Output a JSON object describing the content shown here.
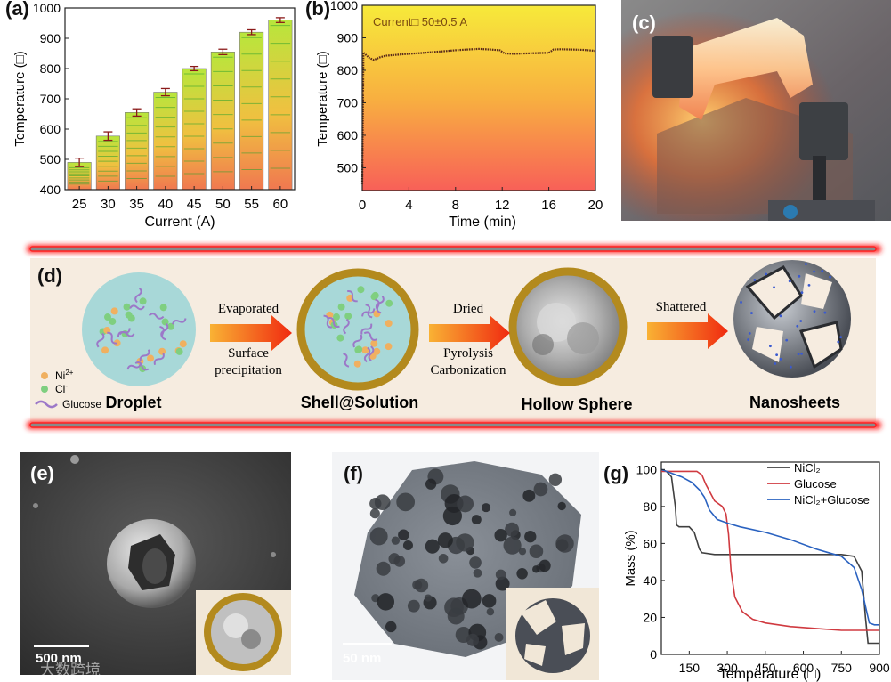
{
  "figure": {
    "panel_labels": {
      "a": "(a)",
      "b": "(b)",
      "c": "(c)",
      "d": "(d)",
      "e": "(e)",
      "f": "(f)",
      "g": "(g)"
    },
    "watermark": "大数跨境"
  },
  "chart_data": [
    {
      "id": "a",
      "type": "bar",
      "title": "",
      "xlabel": "Current (A)",
      "ylabel": "Temperature (□)",
      "categories": [
        "25",
        "30",
        "35",
        "40",
        "45",
        "50",
        "55",
        "60"
      ],
      "values": [
        490,
        577,
        655,
        722,
        800,
        855,
        920,
        960
      ],
      "errors": [
        14,
        14,
        12,
        12,
        7,
        9,
        8,
        8
      ],
      "ylim": [
        400,
        1000
      ],
      "yticks": [
        400,
        500,
        600,
        700,
        800,
        900,
        1000
      ]
    },
    {
      "id": "b",
      "type": "line",
      "title": "",
      "annotation": "Current□ 50±0.5 A",
      "xlabel": "Time (min)",
      "ylabel": "Temperature (□)",
      "x": [
        0,
        0.1,
        0.3,
        0.6,
        1,
        1.5,
        2,
        3,
        4,
        5,
        6,
        7,
        8,
        9,
        10,
        11,
        11.8,
        12.2,
        13,
        14,
        15,
        16,
        16.4,
        17,
        18,
        19,
        20
      ],
      "y": [
        450,
        855,
        848,
        838,
        832,
        840,
        845,
        848,
        851,
        853,
        856,
        859,
        862,
        864,
        866,
        864,
        862,
        852,
        851,
        852,
        853,
        854,
        864,
        865,
        864,
        863,
        860
      ],
      "xlim": [
        0,
        20
      ],
      "ylim": [
        430,
        1000
      ],
      "xticks": [
        0,
        4,
        8,
        12,
        16,
        20
      ],
      "yticks": [
        500,
        600,
        700,
        800,
        900,
        1000
      ]
    },
    {
      "id": "g",
      "type": "line",
      "title": "",
      "xlabel": "Temperature (□)",
      "ylabel": "Mass (%)",
      "xlim": [
        40,
        900
      ],
      "ylim": [
        0,
        104
      ],
      "xticks": [
        150,
        300,
        450,
        600,
        750,
        900
      ],
      "yticks": [
        0,
        20,
        40,
        60,
        80,
        100
      ],
      "series": [
        {
          "name": "NiCl₂",
          "color": "#404040",
          "x": [
            40,
            60,
            80,
            95,
            100,
            110,
            150,
            170,
            190,
            200,
            250,
            350,
            450,
            550,
            650,
            750,
            800,
            830,
            845,
            855,
            900
          ],
          "y": [
            100,
            99,
            96,
            80,
            70,
            69,
            69,
            66,
            57,
            55,
            54,
            54,
            54,
            54,
            54,
            54,
            53,
            45,
            20,
            6,
            6
          ]
        },
        {
          "name": "Glucose",
          "color": "#d03a40",
          "x": [
            40,
            100,
            180,
            200,
            215,
            250,
            280,
            295,
            305,
            315,
            330,
            360,
            400,
            450,
            550,
            650,
            750,
            850,
            900
          ],
          "y": [
            99,
            99,
            99,
            97,
            92,
            83,
            80,
            76,
            65,
            45,
            31,
            23,
            19,
            17,
            15,
            14,
            13,
            13,
            13
          ]
        },
        {
          "name": "NiCl₂+Glucose",
          "color": "#2a62c0",
          "x": [
            40,
            80,
            120,
            160,
            190,
            210,
            230,
            260,
            300,
            350,
            450,
            550,
            650,
            700,
            750,
            800,
            830,
            860,
            880,
            900
          ],
          "y": [
            100,
            98,
            96,
            93,
            89,
            85,
            78,
            73,
            71,
            69,
            66,
            62,
            57,
            55,
            53,
            47,
            35,
            17,
            16,
            16
          ]
        }
      ]
    }
  ],
  "schematic": {
    "legend": {
      "ni": "Ni",
      "ni_sup": "2+",
      "cl": "Cl",
      "cl_sup": "-",
      "glucose": "Glucose"
    },
    "stages": [
      "Droplet",
      "Shell@Solution",
      "Hollow Sphere",
      "Nanosheets"
    ],
    "arrows": [
      {
        "top": "Evaporated",
        "bottom1": "Surface",
        "bottom2": "precipitation"
      },
      {
        "top": "Dried",
        "bottom1": "Pyrolysis",
        "bottom2": "Carbonization"
      },
      {
        "top": "Shattered"
      }
    ]
  },
  "micrographs": {
    "e_scale": "500 nm",
    "f_scale": "50 nm"
  },
  "colors": {
    "gold": "#b38a1e",
    "droplet": "#a8d8d8",
    "ni": "#f0b060",
    "cl": "#7fcf80",
    "glucose": "#9c78c8",
    "redline": "#ff2020"
  }
}
